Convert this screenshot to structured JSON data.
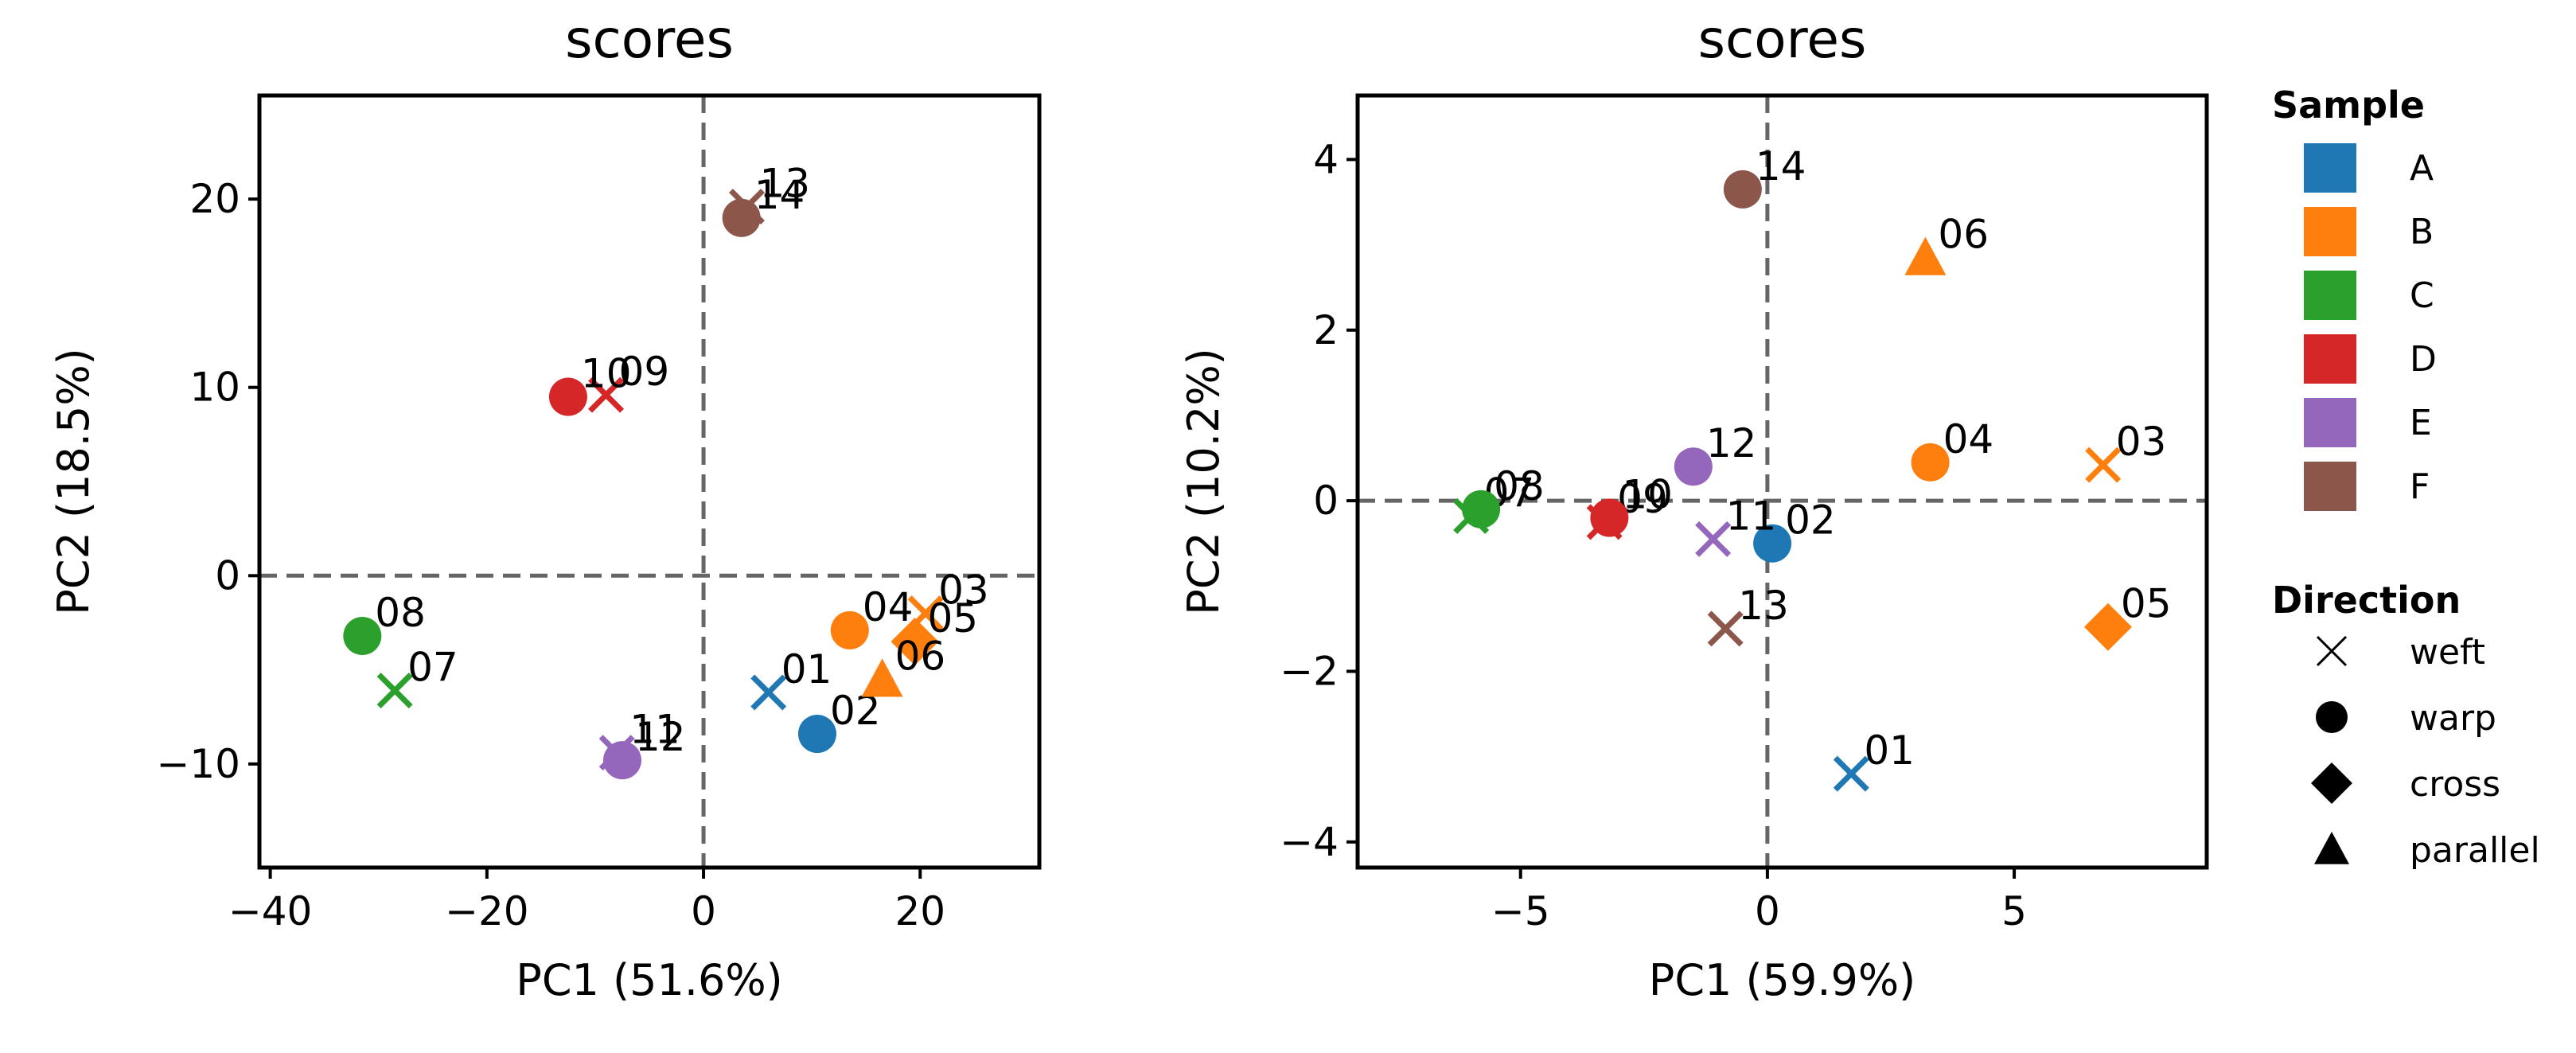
{
  "colors": {
    "A": "#1f77b4",
    "B": "#ff7f0e",
    "C": "#2ca02c",
    "D": "#d62728",
    "E": "#9467bd",
    "F": "#8c564b"
  },
  "legend": {
    "sample_title": "Sample",
    "samples": [
      "A",
      "B",
      "C",
      "D",
      "E",
      "F"
    ],
    "direction_title": "Direction",
    "directions": [
      {
        "label": "weft",
        "marker": "x"
      },
      {
        "label": "warp",
        "marker": "circle"
      },
      {
        "label": "cross",
        "marker": "diamond"
      },
      {
        "label": "parallel",
        "marker": "triangle"
      }
    ]
  },
  "chart_data": [
    {
      "type": "scatter",
      "title": "scores",
      "xlabel": "PC1 (51.6%)",
      "ylabel": "PC2 (18.5%)",
      "xlim": [
        -41,
        31
      ],
      "ylim": [
        -15.5,
        25.5
      ],
      "xticks": [
        -40,
        -20,
        0,
        20
      ],
      "yticks": [
        -10,
        0,
        10,
        20
      ],
      "reference_lines": {
        "x": 0,
        "y": 0
      },
      "points": [
        {
          "label": "01",
          "sample": "A",
          "direction": "weft",
          "x": 6,
          "y": -6.2
        },
        {
          "label": "02",
          "sample": "A",
          "direction": "warp",
          "x": 10.5,
          "y": -8.4
        },
        {
          "label": "03",
          "sample": "B",
          "direction": "weft",
          "x": 20.5,
          "y": -2
        },
        {
          "label": "04",
          "sample": "B",
          "direction": "warp",
          "x": 13.5,
          "y": -2.9
        },
        {
          "label": "05",
          "sample": "B",
          "direction": "cross",
          "x": 19.5,
          "y": -3.5
        },
        {
          "label": "06",
          "sample": "B",
          "direction": "parallel",
          "x": 16.5,
          "y": -5.5
        },
        {
          "label": "07",
          "sample": "C",
          "direction": "weft",
          "x": -28.5,
          "y": -6.1
        },
        {
          "label": "08",
          "sample": "C",
          "direction": "warp",
          "x": -31.5,
          "y": -3.2
        },
        {
          "label": "09",
          "sample": "D",
          "direction": "weft",
          "x": -9,
          "y": 9.6
        },
        {
          "label": "10",
          "sample": "D",
          "direction": "warp",
          "x": -12.5,
          "y": 9.5
        },
        {
          "label": "11",
          "sample": "E",
          "direction": "weft",
          "x": -8,
          "y": -9.4
        },
        {
          "label": "12",
          "sample": "E",
          "direction": "warp",
          "x": -7.5,
          "y": -9.8
        },
        {
          "label": "13",
          "sample": "F",
          "direction": "weft",
          "x": 4,
          "y": 19.6
        },
        {
          "label": "14",
          "sample": "F",
          "direction": "warp",
          "x": 3.5,
          "y": 19
        }
      ]
    },
    {
      "type": "scatter",
      "title": "scores",
      "xlabel": "PC1 (59.9%)",
      "ylabel": "PC2 (10.2%)",
      "xlim": [
        -8.3,
        8.9
      ],
      "ylim": [
        -4.3,
        4.75
      ],
      "xticks": [
        -5,
        0,
        5
      ],
      "yticks": [
        -4,
        -2,
        0,
        2,
        4
      ],
      "reference_lines": {
        "x": 0,
        "y": 0
      },
      "points": [
        {
          "label": "01",
          "sample": "A",
          "direction": "weft",
          "x": 1.7,
          "y": -3.2
        },
        {
          "label": "02",
          "sample": "A",
          "direction": "warp",
          "x": 0.1,
          "y": -0.5
        },
        {
          "label": "03",
          "sample": "B",
          "direction": "weft",
          "x": 6.8,
          "y": 0.42
        },
        {
          "label": "04",
          "sample": "B",
          "direction": "warp",
          "x": 3.3,
          "y": 0.45
        },
        {
          "label": "05",
          "sample": "B",
          "direction": "cross",
          "x": 6.9,
          "y": -1.48
        },
        {
          "label": "06",
          "sample": "B",
          "direction": "parallel",
          "x": 3.2,
          "y": 2.85
        },
        {
          "label": "07",
          "sample": "C",
          "direction": "weft",
          "x": -6,
          "y": -0.18
        },
        {
          "label": "08",
          "sample": "C",
          "direction": "warp",
          "x": -5.8,
          "y": -0.1
        },
        {
          "label": "09",
          "sample": "D",
          "direction": "weft",
          "x": -3.3,
          "y": -0.25
        },
        {
          "label": "10",
          "sample": "D",
          "direction": "warp",
          "x": -3.2,
          "y": -0.2
        },
        {
          "label": "11",
          "sample": "E",
          "direction": "weft",
          "x": -1.1,
          "y": -0.45
        },
        {
          "label": "12",
          "sample": "E",
          "direction": "warp",
          "x": -1.5,
          "y": 0.4
        },
        {
          "label": "13",
          "sample": "F",
          "direction": "weft",
          "x": -0.85,
          "y": -1.5
        },
        {
          "label": "14",
          "sample": "F",
          "direction": "warp",
          "x": -0.5,
          "y": 3.65
        }
      ]
    }
  ]
}
